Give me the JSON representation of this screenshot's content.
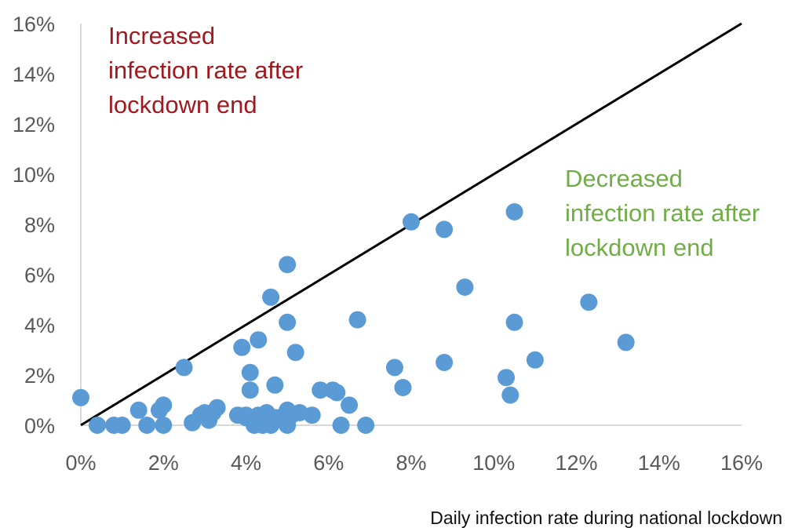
{
  "chart_data": {
    "type": "scatter",
    "xlabel": "Daily infection rate during national lockdown",
    "ylabel": "",
    "xlim": [
      0,
      16
    ],
    "ylim": [
      0,
      16
    ],
    "x_ticks": [
      "0%",
      "2%",
      "4%",
      "6%",
      "8%",
      "10%",
      "12%",
      "14%",
      "16%"
    ],
    "y_ticks": [
      "0%",
      "2%",
      "4%",
      "6%",
      "8%",
      "10%",
      "12%",
      "14%",
      "16%"
    ],
    "reference_line": {
      "from": [
        0,
        0
      ],
      "to": [
        16,
        16
      ],
      "color": "#000000"
    },
    "marker_color": "#5b9bd5",
    "grid": false,
    "annotations": [
      {
        "lines": [
          "Increased",
          "infection rate after",
          "lockdown end"
        ],
        "color": "#a0191e"
      },
      {
        "lines": [
          "Decreased",
          "infection rate after",
          "lockdown end"
        ],
        "color": "#70ad47"
      }
    ],
    "points": [
      [
        0.0,
        1.1
      ],
      [
        0.4,
        0.0
      ],
      [
        0.8,
        0.0
      ],
      [
        1.0,
        0.0
      ],
      [
        1.4,
        0.6
      ],
      [
        1.6,
        0.0
      ],
      [
        1.9,
        0.6
      ],
      [
        2.0,
        0.0
      ],
      [
        2.0,
        0.8
      ],
      [
        2.5,
        2.3
      ],
      [
        2.7,
        0.1
      ],
      [
        2.9,
        0.4
      ],
      [
        3.0,
        0.5
      ],
      [
        3.1,
        0.2
      ],
      [
        3.2,
        0.5
      ],
      [
        3.3,
        0.7
      ],
      [
        3.8,
        0.4
      ],
      [
        3.9,
        3.1
      ],
      [
        4.0,
        0.4
      ],
      [
        4.0,
        0.3
      ],
      [
        4.1,
        2.1
      ],
      [
        4.1,
        1.4
      ],
      [
        4.2,
        0.0
      ],
      [
        4.3,
        0.4
      ],
      [
        4.3,
        3.4
      ],
      [
        4.4,
        0.0
      ],
      [
        4.5,
        0.4
      ],
      [
        4.5,
        0.5
      ],
      [
        4.6,
        0.0
      ],
      [
        4.6,
        5.1
      ],
      [
        4.7,
        0.3
      ],
      [
        4.7,
        1.6
      ],
      [
        4.8,
        0.3
      ],
      [
        5.0,
        4.1
      ],
      [
        5.0,
        0.0
      ],
      [
        5.0,
        0.6
      ],
      [
        5.0,
        6.4
      ],
      [
        5.1,
        0.4
      ],
      [
        5.2,
        2.9
      ],
      [
        5.3,
        0.5
      ],
      [
        5.6,
        0.4
      ],
      [
        5.8,
        1.4
      ],
      [
        6.1,
        1.4
      ],
      [
        6.2,
        1.3
      ],
      [
        6.3,
        0.0
      ],
      [
        6.5,
        0.8
      ],
      [
        6.7,
        4.2
      ],
      [
        6.9,
        0.0
      ],
      [
        7.6,
        2.3
      ],
      [
        7.8,
        1.5
      ],
      [
        8.0,
        8.1
      ],
      [
        8.8,
        2.5
      ],
      [
        8.8,
        7.8
      ],
      [
        9.3,
        5.5
      ],
      [
        10.3,
        1.9
      ],
      [
        10.4,
        1.2
      ],
      [
        10.5,
        8.5
      ],
      [
        10.5,
        4.1
      ],
      [
        11.0,
        2.6
      ],
      [
        12.3,
        4.9
      ],
      [
        13.2,
        3.3
      ]
    ]
  }
}
